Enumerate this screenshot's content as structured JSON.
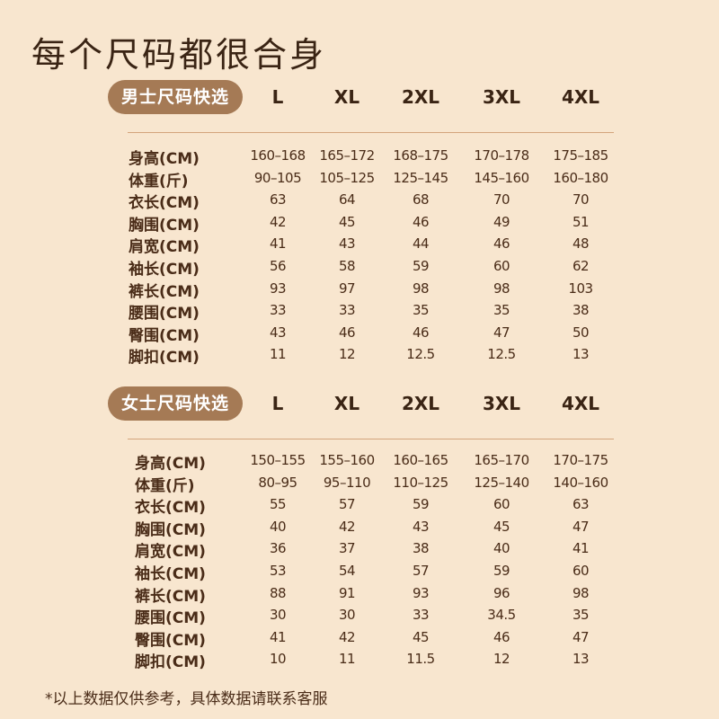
{
  "title": "每个尺码都很合身",
  "sizes": [
    "L",
    "XL",
    "2XL",
    "3XL",
    "4XL"
  ],
  "men": {
    "badge": "男士尺码快选",
    "rows": [
      {
        "label": "身高(CM)",
        "values": [
          "160–168",
          "165–172",
          "168–175",
          "170–178",
          "175–185"
        ]
      },
      {
        "label": "体重(斤)",
        "values": [
          "90–105",
          "105–125",
          "125–145",
          "145–160",
          "160–180"
        ]
      },
      {
        "label": "衣长(CM)",
        "values": [
          "63",
          "64",
          "68",
          "70",
          "70"
        ]
      },
      {
        "label": "胸围(CM)",
        "values": [
          "42",
          "45",
          "46",
          "49",
          "51"
        ]
      },
      {
        "label": "肩宽(CM)",
        "values": [
          "41",
          "43",
          "44",
          "46",
          "48"
        ]
      },
      {
        "label": "袖长(CM)",
        "values": [
          "56",
          "58",
          "59",
          "60",
          "62"
        ]
      },
      {
        "label": "裤长(CM)",
        "values": [
          "93",
          "97",
          "98",
          "98",
          "103"
        ]
      },
      {
        "label": "腰围(CM)",
        "values": [
          "33",
          "33",
          "35",
          "35",
          "38"
        ]
      },
      {
        "label": "臀围(CM)",
        "values": [
          "43",
          "46",
          "46",
          "47",
          "50"
        ]
      },
      {
        "label": "脚扣(CM)",
        "values": [
          "11",
          "12",
          "12.5",
          "12.5",
          "13"
        ]
      }
    ]
  },
  "women": {
    "badge": "女士尺码快选",
    "rows": [
      {
        "label": "身高(CM)",
        "values": [
          "150–155",
          "155–160",
          "160–165",
          "165–170",
          "170–175"
        ]
      },
      {
        "label": "体重(斤)",
        "values": [
          "80–95",
          "95–110",
          "110–125",
          "125–140",
          "140–160"
        ]
      },
      {
        "label": "衣长(CM)",
        "values": [
          "55",
          "57",
          "59",
          "60",
          "63"
        ]
      },
      {
        "label": "胸围(CM)",
        "values": [
          "40",
          "42",
          "43",
          "45",
          "47"
        ]
      },
      {
        "label": "肩宽(CM)",
        "values": [
          "36",
          "37",
          "38",
          "40",
          "41"
        ]
      },
      {
        "label": "袖长(CM)",
        "values": [
          "53",
          "54",
          "57",
          "59",
          "60"
        ]
      },
      {
        "label": "裤长(CM)",
        "values": [
          "88",
          "91",
          "93",
          "96",
          "98"
        ]
      },
      {
        "label": "腰围(CM)",
        "values": [
          "30",
          "30",
          "33",
          "34.5",
          "35"
        ]
      },
      {
        "label": "臀围(CM)",
        "values": [
          "41",
          "42",
          "45",
          "46",
          "47"
        ]
      },
      {
        "label": "脚扣(CM)",
        "values": [
          "10",
          "11",
          "11.5",
          "12",
          "13"
        ]
      }
    ]
  },
  "footnote": "*以上数据仅供参考，具体数据请联系客服",
  "colors": {
    "background": "#f8e6cf",
    "badge": "#a57a55",
    "text": "#4a2c18",
    "rule": "#d3a47c"
  }
}
